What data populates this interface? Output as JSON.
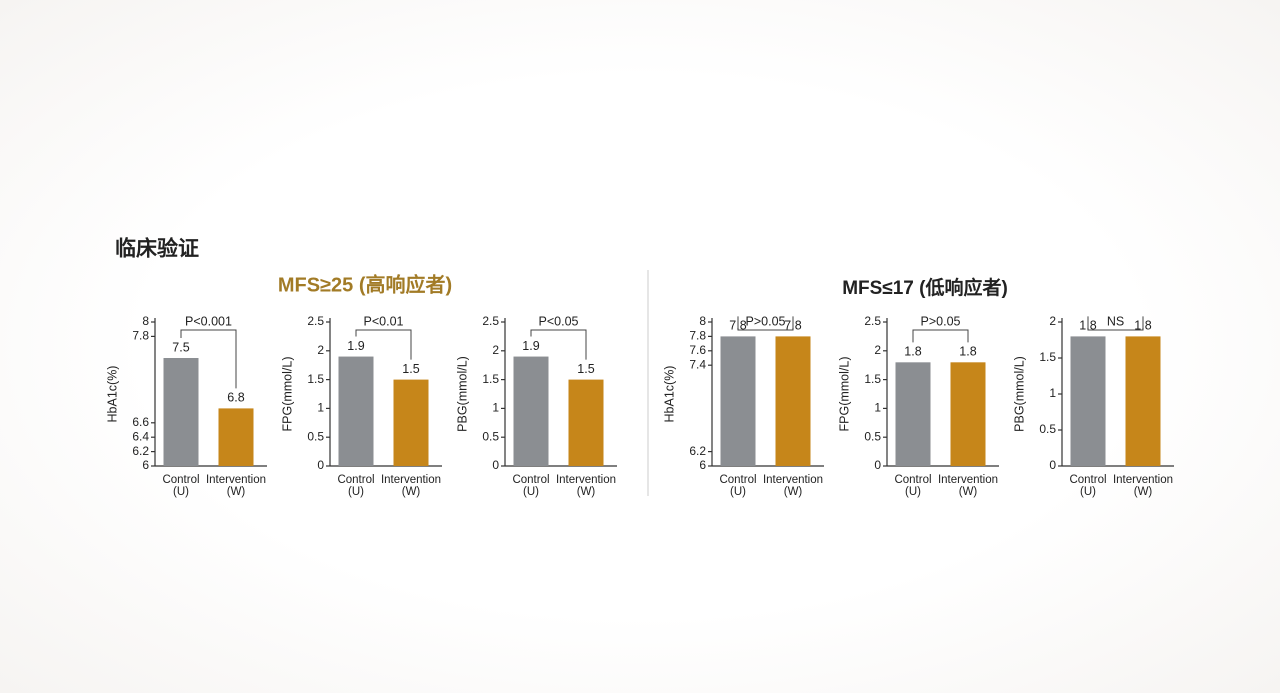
{
  "page": {
    "title": "临床验证",
    "left_heading": "MFS≥25  (高响应者)",
    "right_heading": "MFS≤17  (低响应者)"
  },
  "chart_data": [
    {
      "type": "bar",
      "ylabel": "HbA1c(%)",
      "annotation": "P<0.001",
      "categories": [
        [
          "Control",
          "(U)"
        ],
        [
          "Intervention",
          "(W)"
        ]
      ],
      "values": [
        7.5,
        6.8
      ],
      "colors": [
        "#8b8e92",
        "#c6861a"
      ],
      "ylim": [
        6.0,
        8.0
      ],
      "yticks": [
        6.0,
        6.2,
        6.4,
        6.6,
        7.8,
        8.0
      ]
    },
    {
      "type": "bar",
      "ylabel": "FPG(mmol/L)",
      "annotation": "P<0.01",
      "categories": [
        [
          "Control",
          "(U)"
        ],
        [
          "Intervention",
          "(W)"
        ]
      ],
      "values": [
        1.9,
        1.5
      ],
      "colors": [
        "#8b8e92",
        "#c6861a"
      ],
      "ylim": [
        0.0,
        2.5
      ],
      "yticks": [
        0.0,
        0.5,
        1.0,
        1.5,
        2.0,
        2.5
      ]
    },
    {
      "type": "bar",
      "ylabel": "PBG(mmol/L)",
      "annotation": "P<0.05",
      "categories": [
        [
          "Control",
          "(U)"
        ],
        [
          "Intervention",
          "(W)"
        ]
      ],
      "values": [
        1.9,
        1.5
      ],
      "colors": [
        "#8b8e92",
        "#c6861a"
      ],
      "ylim": [
        0.0,
        2.5
      ],
      "yticks": [
        0.0,
        0.5,
        1.0,
        1.5,
        2.0,
        2.5
      ]
    },
    {
      "type": "bar",
      "ylabel": "HbA1c(%)",
      "annotation": "P>0.05",
      "categories": [
        [
          "Control",
          "(U)"
        ],
        [
          "Intervention",
          "(W)"
        ]
      ],
      "values": [
        7.8,
        7.8
      ],
      "colors": [
        "#8b8e92",
        "#c6861a"
      ],
      "ylim": [
        6.0,
        8.0
      ],
      "yticks": [
        6.0,
        6.2,
        7.4,
        7.6,
        7.8,
        8.0
      ]
    },
    {
      "type": "bar",
      "ylabel": "FPG(mmol/L)",
      "annotation": "P>0.05",
      "categories": [
        [
          "Control",
          "(U)"
        ],
        [
          "Intervention",
          "(W)"
        ]
      ],
      "values": [
        1.8,
        1.8
      ],
      "colors": [
        "#8b8e92",
        "#c6861a"
      ],
      "ylim": [
        0.0,
        2.5
      ],
      "yticks": [
        0.0,
        0.5,
        1.0,
        1.5,
        2.0,
        2.5
      ]
    },
    {
      "type": "bar",
      "ylabel": "PBG(mmol/L)",
      "annotation": "NS",
      "categories": [
        [
          "Control",
          "(U)"
        ],
        [
          "Intervention",
          "(W)"
        ]
      ],
      "values": [
        1.8,
        1.8
      ],
      "colors": [
        "#8b8e92",
        "#c6861a"
      ],
      "ylim": [
        0.0,
        2.0
      ],
      "yticks": [
        0.0,
        0.5,
        1.0,
        1.5,
        2.0
      ]
    }
  ]
}
